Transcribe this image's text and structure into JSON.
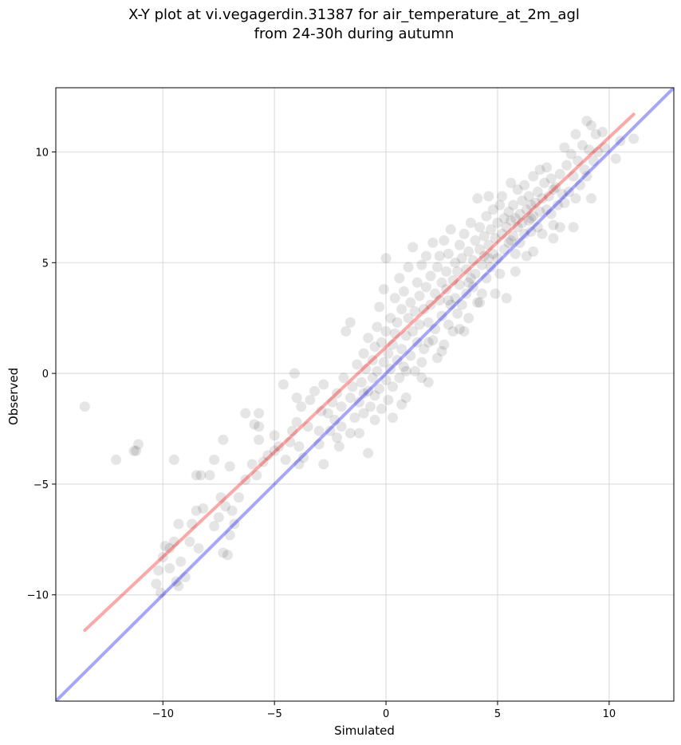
{
  "chart_data": {
    "type": "scatter",
    "title": "X-Y plot at vi.vegagerdin.31387 for air_temperature_at_2m_agl",
    "subtitle": "from 24-30h during autumn",
    "xlabel": "Simulated",
    "ylabel": "Observed",
    "xlim": [
      -14.8,
      12.9
    ],
    "ylim": [
      -14.8,
      12.9
    ],
    "xticks": [
      -10,
      -5,
      0,
      5,
      10
    ],
    "yticks": [
      -10,
      -5,
      0,
      5,
      10
    ],
    "xtick_labels": [
      "−10",
      "−5",
      "0",
      "5",
      "10"
    ],
    "ytick_labels": [
      "−10",
      "−5",
      "0",
      "5",
      "10"
    ],
    "grid": true,
    "legend": "none",
    "series": [
      {
        "kind": "scatter",
        "color": "#000000",
        "opacity": 0.1,
        "points": [
          [
            -13.5,
            -1.5
          ],
          [
            -12.1,
            -3.9
          ],
          [
            -11.3,
            -3.5
          ],
          [
            -11.1,
            -3.2
          ],
          [
            -11.2,
            -3.5
          ],
          [
            -10.2,
            -8.9
          ],
          [
            -10.0,
            -8.3
          ],
          [
            -10.3,
            -9.5
          ],
          [
            -10.1,
            -9.9
          ],
          [
            -9.7,
            -8.8
          ],
          [
            -9.4,
            -9.4
          ],
          [
            -9.3,
            -9.6
          ],
          [
            -9.2,
            -8.5
          ],
          [
            -9.0,
            -9.2
          ],
          [
            -9.5,
            -7.6
          ],
          [
            -9.3,
            -6.8
          ],
          [
            -9.7,
            -7.9
          ],
          [
            -9.9,
            -7.8
          ],
          [
            -9.5,
            -3.9
          ],
          [
            -8.8,
            -7.6
          ],
          [
            -8.7,
            -6.8
          ],
          [
            -8.5,
            -6.2
          ],
          [
            -8.4,
            -7.9
          ],
          [
            -8.2,
            -6.1
          ],
          [
            -8.5,
            -4.6
          ],
          [
            -8.3,
            -4.6
          ],
          [
            -7.9,
            -4.6
          ],
          [
            -7.7,
            -3.9
          ],
          [
            -7.7,
            -6.9
          ],
          [
            -7.5,
            -6.5
          ],
          [
            -7.3,
            -8.1
          ],
          [
            -7.1,
            -8.2
          ],
          [
            -7.0,
            -7.3
          ],
          [
            -7.2,
            -6.0
          ],
          [
            -7.4,
            -5.6
          ],
          [
            -6.9,
            -6.2
          ],
          [
            -6.8,
            -6.8
          ],
          [
            -7.0,
            -4.2
          ],
          [
            -7.3,
            -3.0
          ],
          [
            -6.6,
            -5.6
          ],
          [
            -6.3,
            -4.8
          ],
          [
            -6.0,
            -4.1
          ],
          [
            -5.8,
            -4.6
          ],
          [
            -5.5,
            -4.0
          ],
          [
            -5.3,
            -3.7
          ],
          [
            -6.3,
            -1.8
          ],
          [
            -5.7,
            -1.8
          ],
          [
            -5.7,
            -2.4
          ],
          [
            -5.9,
            -2.3
          ],
          [
            -5.7,
            -3.0
          ],
          [
            -5.0,
            -3.5
          ],
          [
            -4.8,
            -3.3
          ],
          [
            -5.0,
            -2.8
          ],
          [
            -4.6,
            -0.5
          ],
          [
            -4.5,
            -3.9
          ],
          [
            -4.3,
            -3.1
          ],
          [
            -4.2,
            -2.6
          ],
          [
            -4.0,
            -2.2
          ],
          [
            -3.9,
            -3.3
          ],
          [
            -3.9,
            -4.1
          ],
          [
            -3.7,
            -3.8
          ],
          [
            -4.1,
            0.0
          ],
          [
            -4.0,
            -1.1
          ],
          [
            -3.8,
            -1.5
          ],
          [
            -3.5,
            -2.4
          ],
          [
            -3.4,
            -1.2
          ],
          [
            -3.2,
            -0.8
          ],
          [
            -3.0,
            -2.6
          ],
          [
            -3.0,
            -3.2
          ],
          [
            -2.9,
            -1.7
          ],
          [
            -2.8,
            -0.5
          ],
          [
            -2.6,
            -1.8
          ],
          [
            -2.8,
            -4.1
          ],
          [
            -2.5,
            -2.6
          ],
          [
            -2.4,
            -1.3
          ],
          [
            -2.3,
            -2.1
          ],
          [
            -2.2,
            -0.9
          ],
          [
            -2.0,
            -1.5
          ],
          [
            -2.0,
            -2.4
          ],
          [
            -2.1,
            -3.3
          ],
          [
            -1.9,
            -0.2
          ],
          [
            -1.8,
            1.9
          ],
          [
            -1.6,
            2.3
          ],
          [
            -1.6,
            -1.1
          ],
          [
            -1.5,
            -0.6
          ],
          [
            -1.4,
            -2.0
          ],
          [
            -1.3,
            0.4
          ],
          [
            -1.2,
            -1.3
          ],
          [
            -1.2,
            -2.7
          ],
          [
            -1.1,
            -0.4
          ],
          [
            -1.0,
            0.9
          ],
          [
            -1.0,
            -1.8
          ],
          [
            -0.9,
            0.2
          ],
          [
            -0.8,
            -0.8
          ],
          [
            -0.8,
            1.6
          ],
          [
            -0.7,
            -1.5
          ],
          [
            -0.8,
            -3.6
          ],
          [
            -0.6,
            0.6
          ],
          [
            -0.6,
            -0.2
          ],
          [
            -0.5,
            1.2
          ],
          [
            -0.5,
            -1.0
          ],
          [
            -0.4,
            2.1
          ],
          [
            -0.4,
            0.1
          ],
          [
            -0.3,
            -0.7
          ],
          [
            -0.3,
            3.0
          ],
          [
            -0.2,
            1.4
          ],
          [
            -0.2,
            -1.6
          ],
          [
            -0.1,
            0.5
          ],
          [
            -0.1,
            3.8
          ],
          [
            0.0,
            -0.3
          ],
          [
            0.0,
            1.9
          ],
          [
            0.0,
            5.2
          ],
          [
            0.1,
            0.9
          ],
          [
            0.1,
            -1.2
          ],
          [
            0.2,
            2.5
          ],
          [
            0.2,
            0.2
          ],
          [
            0.3,
            1.3
          ],
          [
            0.3,
            -0.6
          ],
          [
            0.4,
            3.4
          ],
          [
            0.4,
            1.8
          ],
          [
            0.5,
            0.6
          ],
          [
            0.5,
            2.3
          ],
          [
            0.6,
            -0.2
          ],
          [
            0.6,
            4.3
          ],
          [
            0.7,
            1.1
          ],
          [
            0.7,
            2.9
          ],
          [
            0.8,
            0.3
          ],
          [
            0.8,
            3.7
          ],
          [
            0.9,
            1.7
          ],
          [
            0.9,
            -1.1
          ],
          [
            1.0,
            2.5
          ],
          [
            1.0,
            4.8
          ],
          [
            1.1,
            0.8
          ],
          [
            1.1,
            3.2
          ],
          [
            1.2,
            1.9
          ],
          [
            1.2,
            5.7
          ],
          [
            1.3,
            2.8
          ],
          [
            1.3,
            0.1
          ],
          [
            1.4,
            4.1
          ],
          [
            1.4,
            1.4
          ],
          [
            1.5,
            3.5
          ],
          [
            1.5,
            2.2
          ],
          [
            1.6,
            4.9
          ],
          [
            1.6,
            0.5
          ],
          [
            1.7,
            2.9
          ],
          [
            1.7,
            1.1
          ],
          [
            1.8,
            3.9
          ],
          [
            1.8,
            5.3
          ],
          [
            1.9,
            2.3
          ],
          [
            1.9,
            -0.4
          ],
          [
            2.0,
            4.4
          ],
          [
            2.0,
            3.1
          ],
          [
            2.1,
            1.5
          ],
          [
            2.1,
            5.9
          ],
          [
            2.2,
            3.6
          ],
          [
            2.2,
            2.0
          ],
          [
            2.3,
            4.8
          ],
          [
            2.3,
            0.7
          ],
          [
            2.4,
            3.3
          ],
          [
            2.4,
            5.3
          ],
          [
            2.5,
            2.6
          ],
          [
            2.5,
            4.1
          ],
          [
            2.6,
            1.3
          ],
          [
            2.6,
            6.0
          ],
          [
            2.7,
            3.8
          ],
          [
            2.7,
            4.6
          ],
          [
            2.8,
            2.2
          ],
          [
            2.8,
            5.4
          ],
          [
            2.9,
            3.1
          ],
          [
            2.9,
            6.5
          ],
          [
            3.0,
            4.2
          ],
          [
            3.0,
            1.9
          ],
          [
            3.1,
            5.0
          ],
          [
            3.1,
            3.4
          ],
          [
            3.2,
            4.6
          ],
          [
            3.2,
            2.7
          ],
          [
            3.3,
            5.8
          ],
          [
            3.3,
            4.0
          ],
          [
            3.4,
            3.1
          ],
          [
            3.4,
            5.2
          ],
          [
            3.5,
            1.9
          ],
          [
            3.5,
            6.3
          ],
          [
            3.6,
            4.7
          ],
          [
            3.6,
            3.6
          ],
          [
            3.7,
            5.5
          ],
          [
            3.7,
            2.5
          ],
          [
            3.8,
            4.3
          ],
          [
            3.8,
            6.8
          ],
          [
            3.9,
            5.1
          ],
          [
            3.9,
            3.9
          ],
          [
            4.0,
            6.0
          ],
          [
            4.0,
            4.5
          ],
          [
            4.1,
            7.9
          ],
          [
            4.1,
            3.2
          ],
          [
            4.2,
            5.6
          ],
          [
            4.2,
            6.6
          ],
          [
            4.3,
            4.9
          ],
          [
            4.3,
            3.6
          ],
          [
            4.4,
            6.2
          ],
          [
            4.4,
            5.3
          ],
          [
            4.5,
            7.1
          ],
          [
            4.5,
            4.3
          ],
          [
            4.6,
            5.8
          ],
          [
            4.6,
            8.0
          ],
          [
            4.7,
            6.5
          ],
          [
            4.7,
            4.8
          ],
          [
            4.8,
            5.4
          ],
          [
            4.8,
            7.4
          ],
          [
            4.9,
            6.1
          ],
          [
            4.9,
            3.6
          ],
          [
            5.0,
            6.8
          ],
          [
            5.0,
            5.2
          ],
          [
            5.1,
            7.6
          ],
          [
            5.1,
            4.5
          ],
          [
            5.2,
            6.3
          ],
          [
            5.2,
            8.0
          ],
          [
            5.3,
            5.6
          ],
          [
            5.3,
            7.0
          ],
          [
            5.4,
            6.6
          ],
          [
            5.4,
            3.4
          ],
          [
            5.5,
            7.3
          ],
          [
            5.5,
            5.9
          ],
          [
            5.6,
            6.9
          ],
          [
            5.6,
            8.6
          ],
          [
            5.7,
            6.2
          ],
          [
            5.7,
            7.6
          ],
          [
            5.8,
            5.4
          ],
          [
            5.8,
            7.0
          ],
          [
            5.9,
            6.6
          ],
          [
            5.9,
            8.3
          ],
          [
            6.0,
            7.2
          ],
          [
            6.0,
            5.9
          ],
          [
            6.1,
            6.8
          ],
          [
            6.1,
            7.8
          ],
          [
            6.2,
            6.3
          ],
          [
            6.2,
            8.5
          ],
          [
            6.3,
            7.4
          ],
          [
            6.3,
            5.3
          ],
          [
            6.4,
            6.9
          ],
          [
            6.4,
            8.0
          ],
          [
            6.5,
            7.6
          ],
          [
            6.5,
            6.4
          ],
          [
            6.6,
            8.9
          ],
          [
            6.6,
            7.1
          ],
          [
            6.7,
            7.7
          ],
          [
            6.8,
            6.6
          ],
          [
            6.8,
            8.2
          ],
          [
            6.9,
            7.3
          ],
          [
            6.9,
            9.2
          ],
          [
            7.0,
            7.9
          ],
          [
            7.0,
            6.3
          ],
          [
            7.1,
            8.6
          ],
          [
            7.2,
            7.4
          ],
          [
            7.2,
            9.3
          ],
          [
            7.3,
            8.0
          ],
          [
            7.4,
            7.2
          ],
          [
            7.4,
            8.8
          ],
          [
            7.5,
            6.7
          ],
          [
            7.6,
            8.4
          ],
          [
            7.7,
            7.6
          ],
          [
            7.8,
            6.6
          ],
          [
            7.8,
            9.0
          ],
          [
            7.9,
            8.1
          ],
          [
            8.0,
            10.2
          ],
          [
            8.0,
            7.7
          ],
          [
            8.1,
            9.4
          ],
          [
            8.2,
            8.2
          ],
          [
            8.3,
            9.9
          ],
          [
            8.4,
            8.9
          ],
          [
            8.5,
            7.9
          ],
          [
            8.5,
            10.8
          ],
          [
            8.6,
            9.6
          ],
          [
            8.7,
            8.5
          ],
          [
            8.8,
            10.3
          ],
          [
            8.9,
            9.2
          ],
          [
            9.0,
            11.4
          ],
          [
            9.0,
            8.9
          ],
          [
            9.1,
            10.1
          ],
          [
            9.2,
            11.2
          ],
          [
            9.3,
            9.6
          ],
          [
            9.4,
            10.8
          ],
          [
            9.5,
            10.0
          ],
          [
            9.7,
            10.9
          ],
          [
            9.8,
            10.2
          ],
          [
            10.3,
            9.7
          ],
          [
            10.5,
            10.5
          ],
          [
            11.1,
            10.6
          ],
          [
            9.2,
            7.9
          ],
          [
            8.4,
            6.6
          ],
          [
            7.5,
            6.1
          ],
          [
            6.6,
            5.5
          ],
          [
            5.8,
            4.6
          ],
          [
            4.2,
            3.2
          ],
          [
            3.3,
            2.0
          ],
          [
            2.5,
            1.0
          ],
          [
            1.6,
            -0.2
          ],
          [
            0.7,
            -1.4
          ],
          [
            -0.5,
            -2.1
          ],
          [
            -1.6,
            -2.7
          ],
          [
            -2.2,
            -2.9
          ],
          [
            0.3,
            -2.0
          ],
          [
            -1.0,
            -0.9
          ],
          [
            0.9,
            0.1
          ],
          [
            1.9,
            1.4
          ],
          [
            2.8,
            3.3
          ],
          [
            3.7,
            4.1
          ],
          [
            4.6,
            5.2
          ],
          [
            5.6,
            6.0
          ],
          [
            6.5,
            7.0
          ],
          [
            7.5,
            8.3
          ]
        ]
      },
      {
        "kind": "line",
        "name": "",
        "color": "#ff0000",
        "opacity": 0.35,
        "points": [
          [
            -13.5,
            -11.6
          ],
          [
            11.1,
            11.7
          ]
        ]
      },
      {
        "kind": "line",
        "name": "",
        "color": "#0000ff",
        "opacity": 0.35,
        "points": [
          [
            -14.8,
            -14.8
          ],
          [
            12.9,
            12.9
          ]
        ]
      }
    ]
  }
}
